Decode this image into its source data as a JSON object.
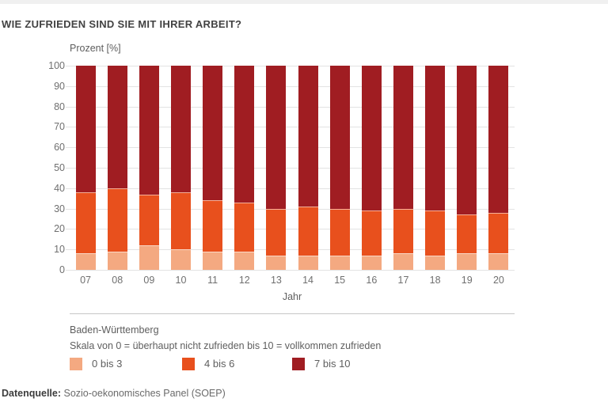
{
  "page": {
    "title": "WIE ZUFRIEDEN SIND SIE MIT IHRER ARBEIT?",
    "footer_label": "Datenquelle:",
    "footer_text": " Sozio-oekonomisches Panel (SOEP)"
  },
  "chart_data": {
    "type": "bar",
    "stacked": true,
    "title": "WIE ZUFRIEDEN SIND SIE MIT IHRER ARBEIT?",
    "ylabel": "Prozent [%]",
    "xlabel": "Jahr",
    "ylim": [
      0,
      100
    ],
    "ytick_step": 10,
    "grid": true,
    "legend_position": "bottom",
    "region": "Baden-Württemberg",
    "scale_note": "Skala von 0 = überhaupt nicht zufrieden bis 10 = vollkommen zufrieden",
    "categories": [
      "07",
      "08",
      "09",
      "10",
      "11",
      "12",
      "13",
      "14",
      "15",
      "16",
      "17",
      "18",
      "19",
      "20"
    ],
    "series": [
      {
        "name": "0 bis 3",
        "color": "#F4A981",
        "values": [
          8,
          9,
          12,
          10,
          9,
          9,
          7,
          7,
          7,
          7,
          8,
          7,
          8,
          8
        ]
      },
      {
        "name": "4 bis 6",
        "color": "#E8501D",
        "values": [
          30,
          31,
          25,
          28,
          25,
          24,
          23,
          24,
          23,
          22,
          22,
          22,
          19,
          20
        ]
      },
      {
        "name": "7 bis 10",
        "color": "#A01D22",
        "values": [
          62,
          60,
          63,
          62,
          66,
          67,
          70,
          69,
          70,
          71,
          70,
          71,
          73,
          72
        ]
      }
    ]
  },
  "colors": {
    "gridline": "#E3E3E3",
    "separator": "#C6C6C6",
    "top_bar": "#F0F0F0",
    "title_text": "#424242",
    "body_text": "#5E5E5E",
    "axis_text": "#6F6F6F"
  },
  "layout": {
    "legend_offsets": [
      0,
      142,
      281
    ]
  }
}
